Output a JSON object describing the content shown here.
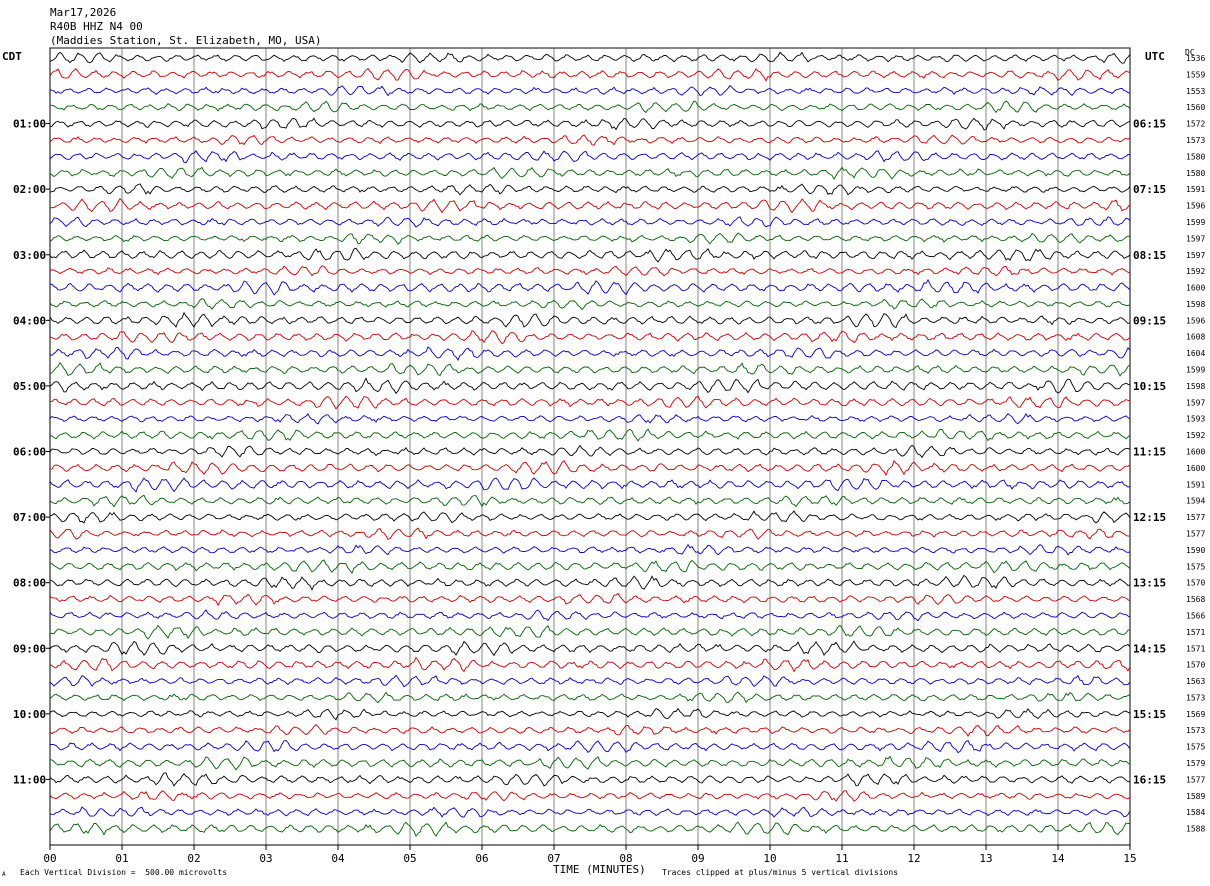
{
  "header": {
    "date": "Mar17,2026",
    "channel": "R40B HHZ N4 00",
    "station": "(Maddies Station, St. Elizabeth, MO, USA)"
  },
  "corner_labels": {
    "left": "CDT",
    "right": "UTC",
    "dc": "DC"
  },
  "footer": {
    "scale_note": "Each Vertical Division =  500.00 microvolts",
    "clip_note": "Traces clipped at plus/minus 5 vertical divisions",
    "mark": "A"
  },
  "colors": {
    "black": "#000000",
    "red": "#d00000",
    "blue": "#0000c8",
    "green": "#006400",
    "grid": "#000000"
  },
  "chart_data": {
    "type": "line",
    "title": "",
    "xlabel": "TIME (MINUTES)",
    "xlim": [
      0,
      15
    ],
    "x_ticks": [
      "00",
      "01",
      "02",
      "03",
      "04",
      "05",
      "06",
      "07",
      "08",
      "09",
      "10",
      "11",
      "12",
      "13",
      "14",
      "15"
    ],
    "row_minutes": 15,
    "trace_colors": [
      "#000000",
      "#d00000",
      "#0000c8",
      "#006400"
    ],
    "left_labels": [
      "01:00",
      "02:00",
      "03:00",
      "04:00",
      "05:00",
      "06:00",
      "07:00",
      "08:00",
      "09:00",
      "10:00",
      "11:00"
    ],
    "right_labels": [
      "06:15",
      "07:15",
      "08:15",
      "09:15",
      "10:15",
      "11:15",
      "12:15",
      "13:15",
      "14:15",
      "15:15",
      "16:15"
    ],
    "dc_values": [
      "1536",
      "1559",
      "1553",
      "1560",
      "1572",
      "1573",
      "1580",
      "1580",
      "1591",
      "1596",
      "1599",
      "1597",
      "1597",
      "1592",
      "1600",
      "1598",
      "1596",
      "1608",
      "1604",
      "1599",
      "1598",
      "1597",
      "1593",
      "1592",
      "1600",
      "1600",
      "1591",
      "1594",
      "1577",
      "1577",
      "1590",
      "1575",
      "1570",
      "1568",
      "1566",
      "1571",
      "1571",
      "1570",
      "1563",
      "1573",
      "1569",
      "1573",
      "1575",
      "1579",
      "1577",
      "1589",
      "1584",
      "1588"
    ]
  }
}
